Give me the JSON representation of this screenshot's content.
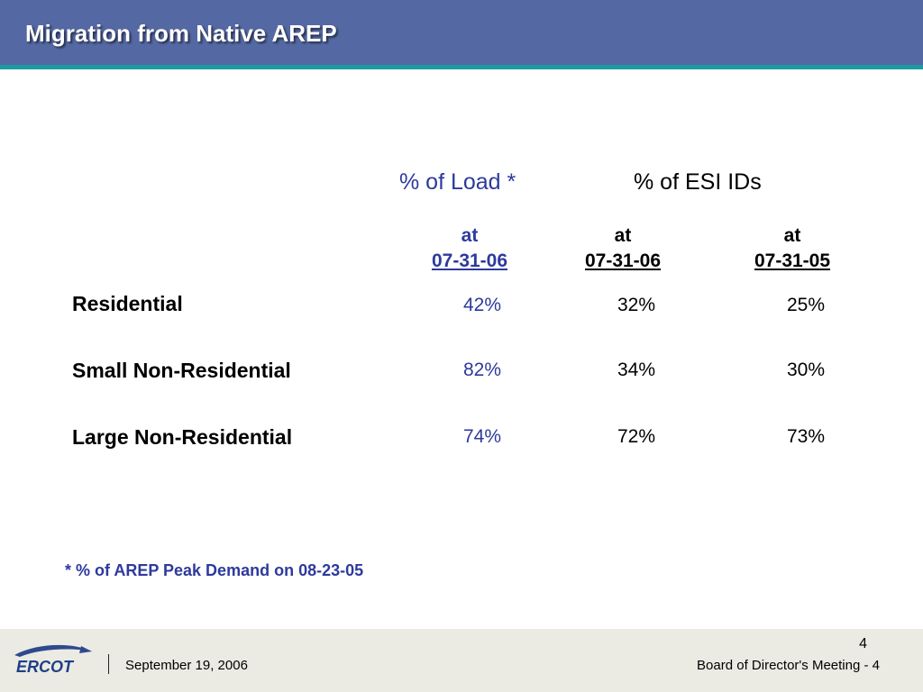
{
  "header": {
    "title": "Migration from Native AREP"
  },
  "table": {
    "group_headers": {
      "load": "% of Load *",
      "esi": "% of ESI IDs"
    },
    "columns": [
      {
        "at": "at",
        "date": "07-31-06"
      },
      {
        "at": "at",
        "date": "07-31-06"
      },
      {
        "at": "at",
        "date": "07-31-05"
      }
    ],
    "rows": [
      {
        "label": "Residential",
        "values": [
          "42%",
          "32%",
          "25%"
        ]
      },
      {
        "label": "Small Non-Residential",
        "values": [
          "82%",
          "34%",
          "30%"
        ]
      },
      {
        "label": "Large Non-Residential",
        "values": [
          "74%",
          "72%",
          "73%"
        ]
      }
    ]
  },
  "footnote": "* % of AREP Peak Demand on 08-23-05",
  "footer": {
    "logo_text": "ERCOT",
    "date": "September 19, 2006",
    "meeting": "Board of Director's Meeting - 4",
    "page_number": "4"
  },
  "colors": {
    "title_bar": "#5468a3",
    "title_rule": "#1c9aa0",
    "accent_blue": "#2e3a9c",
    "footer_bg": "#ebebe4"
  }
}
